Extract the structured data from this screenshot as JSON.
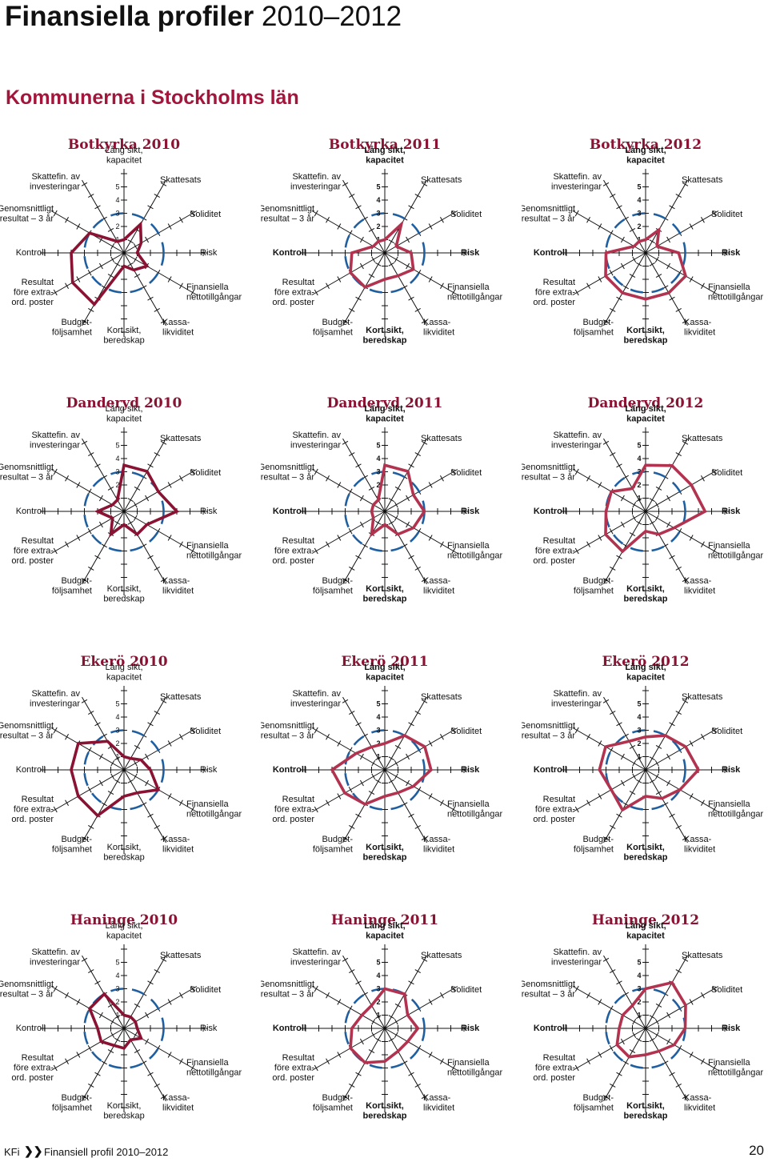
{
  "page": {
    "title_bold": "Finansiella profiler",
    "title_rest": "2010–2012",
    "section": "Kommunerna i Stockholms län"
  },
  "footer": {
    "brand": "KFi",
    "arrows": "❯❯",
    "text": "Finansiell profil 2010–2012",
    "page_number": "20"
  },
  "colors": {
    "profile_line": "#b2334f",
    "profile_line_dark": "#8a1233",
    "reference_dash": "#1f5fa0",
    "axis": "#111111",
    "title": "#8a1233"
  },
  "chart_data": {
    "type": "radar",
    "scale": [
      1,
      2,
      3,
      4,
      5
    ],
    "reference_level": 3,
    "axes": [
      [
        "Lång sikt,",
        "kapacitet"
      ],
      [
        "Skattesats"
      ],
      [
        "Soliditet"
      ],
      [
        "Risk"
      ],
      [
        "Finansiella",
        "nettotillgångar"
      ],
      [
        "Kassa-",
        "likviditet"
      ],
      [
        "Kort sikt,",
        "beredskap"
      ],
      [
        "Budget-",
        "följsamhet"
      ],
      [
        "Resultat",
        "före extra-",
        "ord. poster"
      ],
      [
        "Kontroll"
      ],
      [
        "Genomsnittligt",
        "resultat – 3 år"
      ],
      [
        "Skattefin. av",
        "investeringar"
      ]
    ],
    "charts": [
      {
        "title": "Botkyrka 2010",
        "values": [
          1.0,
          2.5,
          1.5,
          1.0,
          2.0,
          1.5,
          1.0,
          4.5,
          4.5,
          4.0,
          3.0,
          1.0
        ]
      },
      {
        "title": "Botkyrka 2011",
        "values": [
          1.0,
          2.5,
          1.0,
          2.0,
          2.5,
          2.0,
          2.0,
          3.0,
          3.0,
          2.5,
          1.0,
          1.0
        ]
      },
      {
        "title": "Botkyrka 2012",
        "values": [
          1.0,
          2.0,
          1.0,
          2.5,
          3.5,
          3.5,
          3.5,
          3.5,
          3.5,
          3.0,
          1.0,
          1.0
        ]
      },
      {
        "title": "Danderyd 2010",
        "values": [
          3.5,
          3.5,
          3.0,
          4.0,
          2.0,
          2.0,
          1.0,
          2.0,
          1.0,
          2.0,
          1.0,
          1.0
        ]
      },
      {
        "title": "Danderyd 2011",
        "values": [
          3.5,
          3.5,
          2.5,
          3.0,
          2.5,
          2.0,
          1.0,
          2.0,
          1.0,
          1.0,
          1.0,
          1.0
        ]
      },
      {
        "title": "Danderyd 2012",
        "values": [
          3.5,
          4.0,
          4.0,
          4.5,
          2.5,
          2.0,
          1.5,
          3.5,
          3.5,
          3.0,
          3.0,
          2.0
        ]
      },
      {
        "title": "Ekerö 2010",
        "values": [
          1.0,
          1.0,
          1.5,
          2.0,
          3.0,
          2.0,
          2.0,
          4.0,
          4.0,
          4.0,
          4.0,
          2.5
        ]
      },
      {
        "title": "Ekerö 2011",
        "values": [
          2.0,
          3.0,
          3.5,
          3.5,
          2.5,
          2.0,
          2.0,
          3.0,
          3.5,
          4.0,
          2.5,
          2.0
        ]
      },
      {
        "title": "Ekerö 2012",
        "values": [
          2.5,
          3.0,
          3.5,
          4.0,
          3.0,
          2.5,
          2.0,
          3.5,
          3.0,
          3.5,
          3.5,
          2.5
        ]
      },
      {
        "title": "Haninge 2010",
        "values": [
          1.0,
          1.0,
          1.0,
          1.0,
          1.5,
          1.0,
          1.5,
          1.5,
          2.0,
          2.0,
          3.0,
          3.0
        ]
      },
      {
        "title": "Haninge 2011",
        "values": [
          3.0,
          3.0,
          2.0,
          2.5,
          2.0,
          2.0,
          2.5,
          3.0,
          3.0,
          2.5,
          2.0,
          2.0
        ]
      },
      {
        "title": "Haninge 2012",
        "values": [
          3.0,
          4.0,
          3.5,
          3.0,
          2.5,
          2.0,
          2.0,
          2.5,
          2.5,
          2.0,
          2.0,
          2.0
        ]
      }
    ]
  }
}
